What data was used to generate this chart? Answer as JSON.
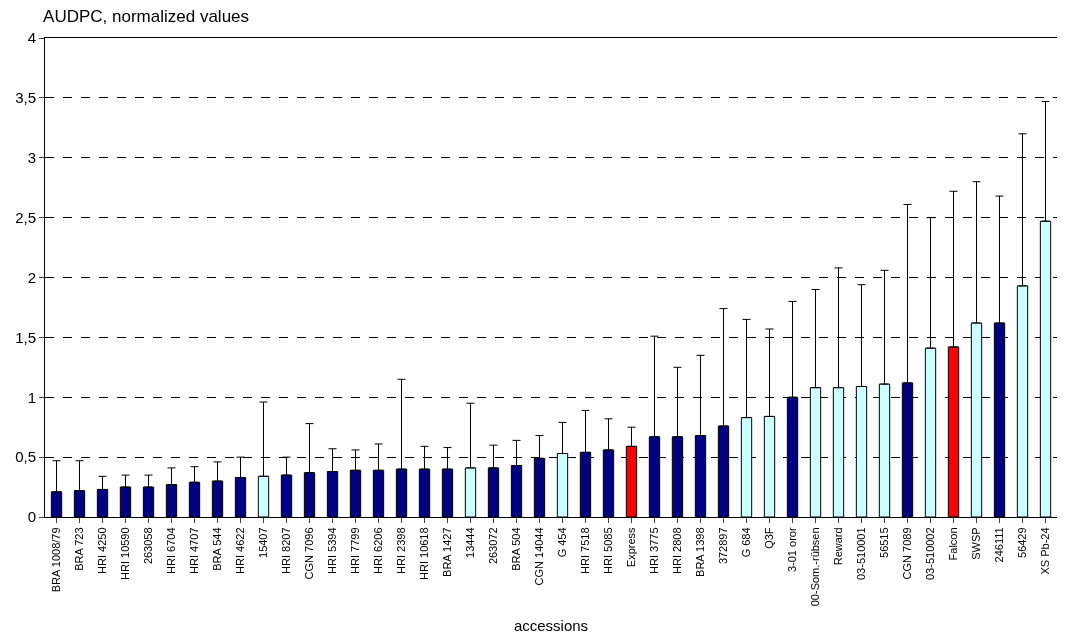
{
  "chart_data": {
    "type": "bar",
    "title": "AUDPC, normalized values",
    "xlabel": "accessions",
    "categories": [
      "BRA 1008/79",
      "BRA 723",
      "HRI 4250",
      "HRI 10590",
      "263058",
      "HRI 6704",
      "HRI 4707",
      "BRA 544",
      "HRI 4622",
      "15407",
      "HRI 8207",
      "CGN 7096",
      "HRI 5394",
      "HRI 7799",
      "HRI 6206",
      "HRI 2398",
      "HRI 10618",
      "BRA 1427",
      "13444",
      "263072",
      "BRA 504",
      "CGN 14044",
      "G 454",
      "HRI 7518",
      "HRI 5085",
      "Express",
      "HRI 3775",
      "HRI 2808",
      "BRA 1398",
      "372897",
      "G 684",
      "Q3F",
      "3-01 oror",
      "00-Som.-rübsen",
      "Reward",
      "03-510001",
      "56515",
      "CGN 7089",
      "03-510002",
      "Falcon",
      "SWSP",
      "246111",
      "56429",
      "XS Pb-24"
    ],
    "values": [
      0.21,
      0.22,
      0.23,
      0.25,
      0.25,
      0.27,
      0.29,
      0.3,
      0.33,
      0.34,
      0.35,
      0.37,
      0.38,
      0.39,
      0.39,
      0.4,
      0.4,
      0.4,
      0.41,
      0.41,
      0.43,
      0.49,
      0.53,
      0.54,
      0.56,
      0.59,
      0.67,
      0.67,
      0.68,
      0.76,
      0.83,
      0.84,
      1.0,
      1.08,
      1.08,
      1.09,
      1.11,
      1.12,
      1.41,
      1.42,
      1.62,
      1.62,
      1.93,
      2.47
    ],
    "errors": [
      [
        0.21,
        0.47
      ],
      [
        0.22,
        0.47
      ],
      [
        0.23,
        0.34
      ],
      [
        0.25,
        0.35
      ],
      [
        0.25,
        0.35
      ],
      [
        0.27,
        0.41
      ],
      [
        0.29,
        0.42
      ],
      [
        0.3,
        0.46
      ],
      [
        0.33,
        0.5
      ],
      [
        0.34,
        0.96
      ],
      [
        0.35,
        0.5
      ],
      [
        0.37,
        0.78
      ],
      [
        0.38,
        0.57
      ],
      [
        0.39,
        0.56
      ],
      [
        0.39,
        0.61
      ],
      [
        0.4,
        1.15
      ],
      [
        0.4,
        0.59
      ],
      [
        0.4,
        0.58
      ],
      [
        0.41,
        0.95
      ],
      [
        0.41,
        0.6
      ],
      [
        0.43,
        0.64
      ],
      [
        0.49,
        0.68
      ],
      [
        0.53,
        0.79
      ],
      [
        0.54,
        0.89
      ],
      [
        0.56,
        0.82
      ],
      [
        0.59,
        0.75
      ],
      [
        0.67,
        1.51
      ],
      [
        0.67,
        1.25
      ],
      [
        0.68,
        1.35
      ],
      [
        0.76,
        1.74
      ],
      [
        0.83,
        1.65
      ],
      [
        0.84,
        1.57
      ],
      [
        1.0,
        1.8
      ],
      [
        1.08,
        1.9
      ],
      [
        1.08,
        2.08
      ],
      [
        1.09,
        1.94
      ],
      [
        1.11,
        2.06
      ],
      [
        1.12,
        2.61
      ],
      [
        1.41,
        2.5
      ],
      [
        1.42,
        2.72
      ],
      [
        1.62,
        2.8
      ],
      [
        1.62,
        2.68
      ],
      [
        1.93,
        3.2
      ],
      [
        2.47,
        3.47
      ]
    ],
    "colors": [
      "#000080",
      "#000080",
      "#000080",
      "#000080",
      "#000080",
      "#000080",
      "#000080",
      "#000080",
      "#000080",
      "#ccffff",
      "#000080",
      "#000080",
      "#000080",
      "#000080",
      "#000080",
      "#000080",
      "#000080",
      "#000080",
      "#ccffff",
      "#000080",
      "#000080",
      "#000080",
      "#ccffff",
      "#000080",
      "#000080",
      "#ff0000",
      "#000080",
      "#000080",
      "#000080",
      "#000080",
      "#ccffff",
      "#ccffff",
      "#000080",
      "#ccffff",
      "#ccffff",
      "#ccffff",
      "#ccffff",
      "#000080",
      "#ccffff",
      "#ff0000",
      "#ccffff",
      "#000080",
      "#ccffff",
      "#ccffff"
    ],
    "ylim": [
      0,
      4
    ],
    "yticks": [
      0,
      {
        "value": 0.5,
        "label": "0,5"
      },
      1,
      {
        "value": 1.5,
        "label": "1,5"
      },
      2,
      {
        "value": 2.5,
        "label": "2,5"
      },
      3,
      {
        "value": 3.5,
        "label": "3,5"
      },
      4
    ],
    "grid": "y",
    "line_style": "dashed"
  }
}
